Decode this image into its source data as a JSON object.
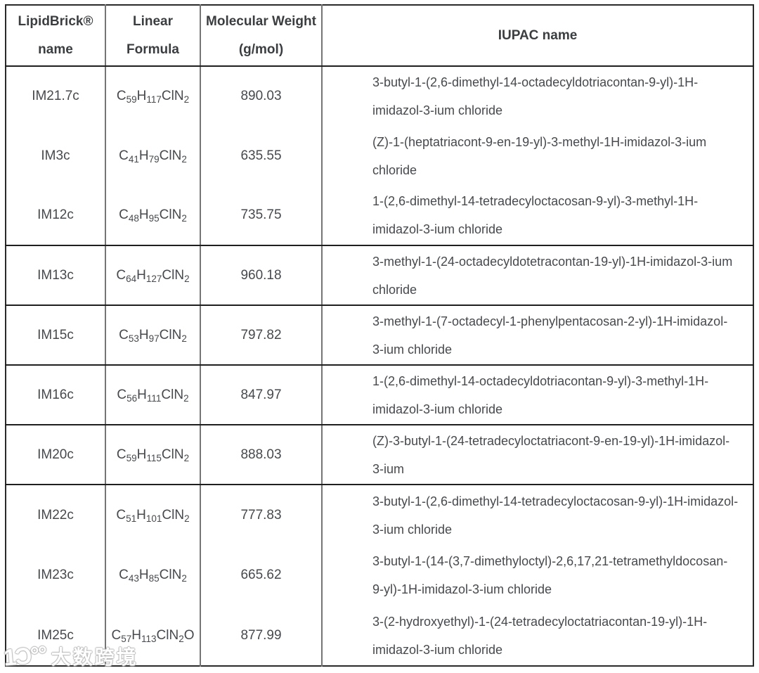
{
  "table": {
    "header": {
      "lipidbrick_line1": "LipidBrick®",
      "lipidbrick_line2": "name",
      "linear_line1": "Linear",
      "linear_line2": "Formula",
      "mw_line1": "Molecular Weight",
      "mw_line2": "(g/mol)",
      "iupac": "IUPAC name"
    },
    "rows": [
      {
        "lipidbrick_name": "IM21.7c",
        "linear_formula": "C59H117ClN2",
        "molecular_weight": "890.03",
        "iupac_name": "3-butyl-1-(2,6-dimethyl-14-octadecyldotriacontan-9-yl)-1H-imidazol-3-ium chloride"
      },
      {
        "lipidbrick_name": "IM3c",
        "linear_formula": "C41H79ClN2",
        "molecular_weight": "635.55",
        "iupac_name": "(Z)-1-(heptatriacont-9-en-19-yl)-3-methyl-1H-imidazol-3-ium chloride"
      },
      {
        "lipidbrick_name": "IM12c",
        "linear_formula": "C48H95ClN2",
        "molecular_weight": "735.75",
        "iupac_name": "1-(2,6-dimethyl-14-tetradecyloctacosan-9-yl)-3-methyl-1H-imidazol-3-ium chloride"
      },
      {
        "lipidbrick_name": "IM13c",
        "linear_formula": "C64H127ClN2",
        "molecular_weight": "960.18",
        "iupac_name": "3-methyl-1-(24-octadecyldotetracontan-19-yl)-1H-imidazol-3-ium chloride"
      },
      {
        "lipidbrick_name": "IM15c",
        "linear_formula": "C53H97ClN2",
        "molecular_weight": "797.82",
        "iupac_name": "3-methyl-1-(7-octadecyl-1-phenylpentacosan-2-yl)-1H-imidazol-3-ium chloride"
      },
      {
        "lipidbrick_name": "IM16c",
        "linear_formula": "C56H111ClN2",
        "molecular_weight": "847.97",
        "iupac_name": "1-(2,6-dimethyl-14-octadecyldotriacontan-9-yl)-3-methyl-1H-imidazol-3-ium chloride"
      },
      {
        "lipidbrick_name": "IM20c",
        "linear_formula": "C59H115ClN2",
        "molecular_weight": "888.03",
        "iupac_name": "(Z)-3-butyl-1-(24-tetradecyloctatriacont-9-en-19-yl)-1H-imidazol-3-ium"
      },
      {
        "lipidbrick_name": "IM22c",
        "linear_formula": "C51H101ClN2",
        "molecular_weight": "777.83",
        "iupac_name": "3-butyl-1-(2,6-dimethyl-14-tetradecyloctacosan-9-yl)-1H-imidazol-3-ium chloride"
      },
      {
        "lipidbrick_name": "IM23c",
        "linear_formula": "C43H85ClN2",
        "molecular_weight": "665.62",
        "iupac_name": "3-butyl-1-(14-(3,7-dimethyloctyl)-2,6,17,21-tetramethyldocosan-9-yl)-1H-imidazol-3-ium chloride"
      },
      {
        "lipidbrick_name": "IM25c",
        "linear_formula": "C57H113ClN2O",
        "molecular_weight": "877.99",
        "iupac_name": "3-(2-hydroxyethyl)-1-(24-tetradecyloctatriacontan-19-yl)-1H-imidazol-3-ium chloride"
      }
    ]
  },
  "watermark": {
    "logo_glyph": "1Ɔ°°",
    "brand_text": "大数跨境"
  },
  "colors": {
    "body_text": "#46494d",
    "header_text": "#3b3e40",
    "rule_dark": "#1f1f1f",
    "rule_gray": "#757575",
    "background": "#ffffff"
  }
}
